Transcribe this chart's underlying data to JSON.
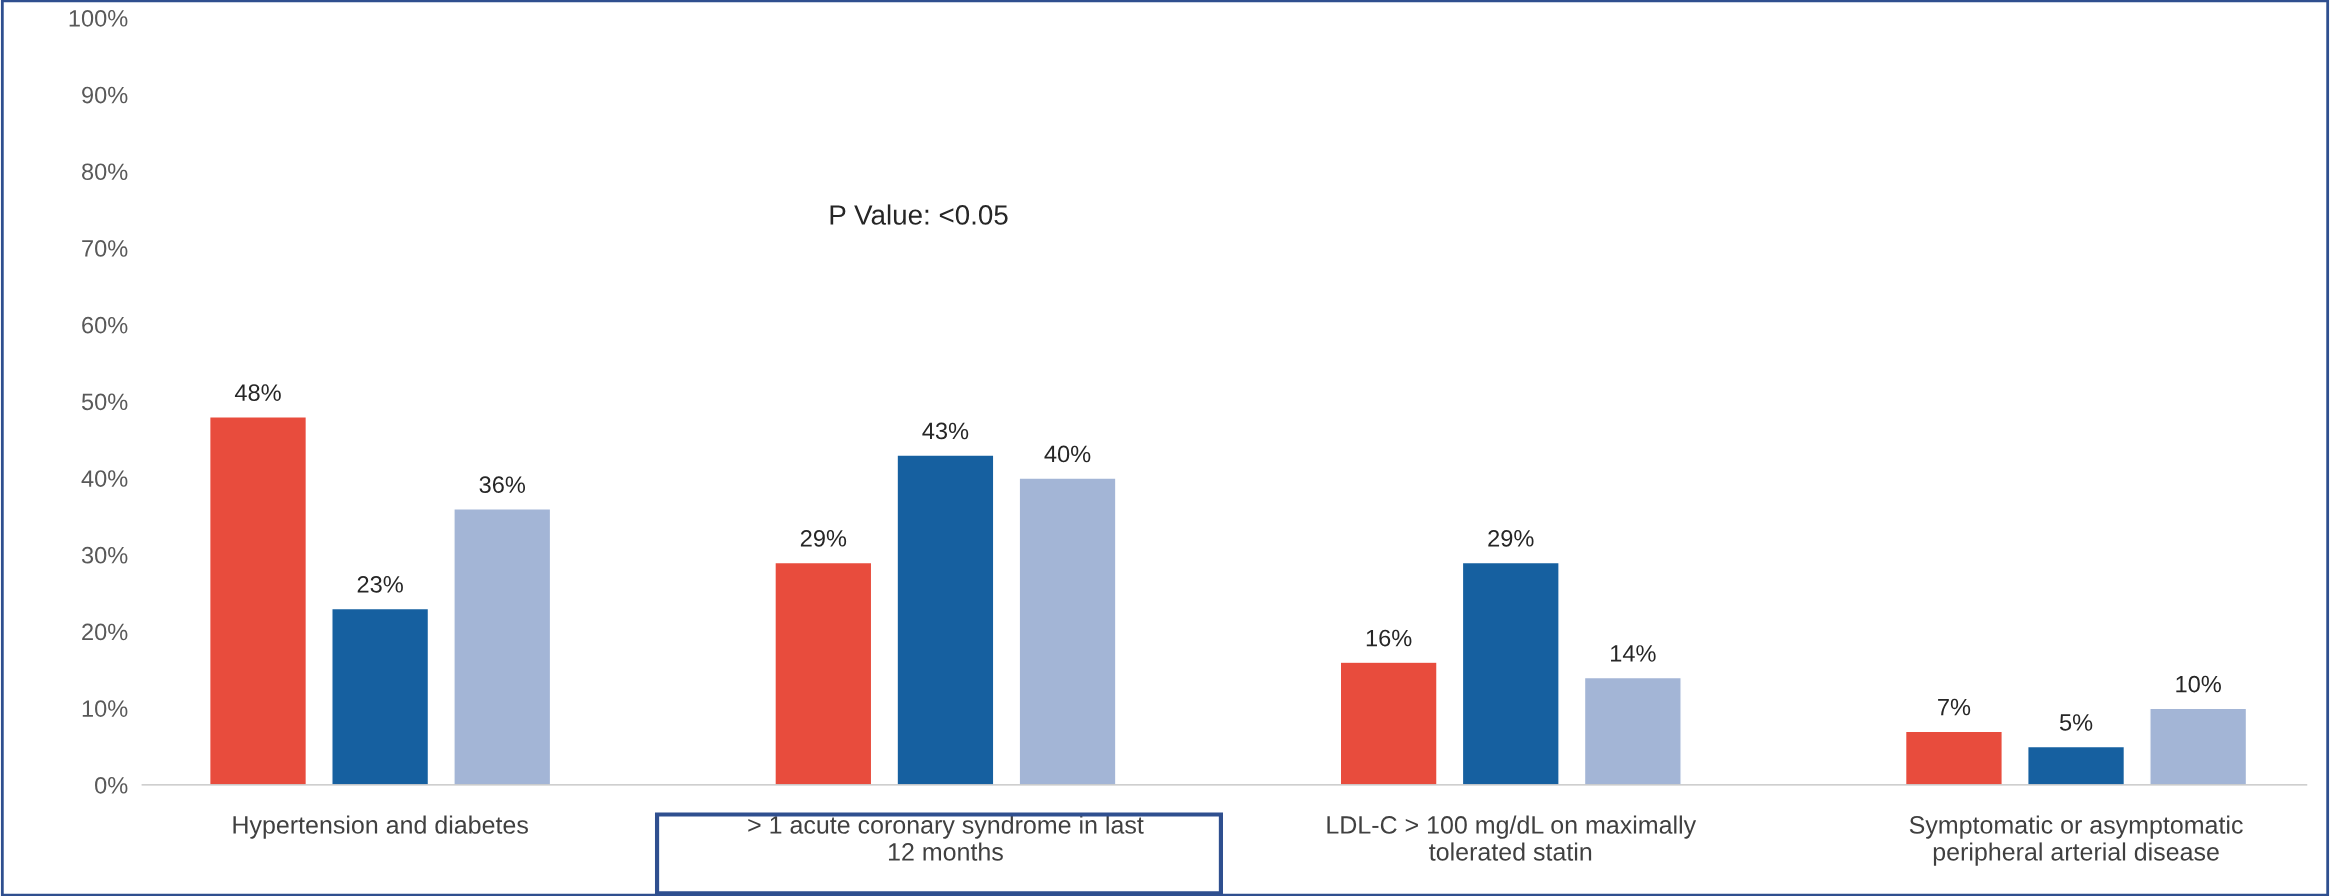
{
  "chart_data": {
    "type": "bar",
    "categories": [
      "Hypertension and diabetes",
      "> 1 acute coronary syndrome in last\n12 months",
      "LDL-C > 100 mg/dL on maximally\ntolerated statin",
      "Symptomatic or asymptomatic\nperipheral arterial disease"
    ],
    "series": [
      {
        "color": "#e84c3d",
        "values": [
          48,
          29,
          16,
          7
        ],
        "value_labels": [
          "48%",
          "29%",
          "16%",
          "7%"
        ]
      },
      {
        "color": "#1660a0",
        "values": [
          23,
          43,
          29,
          5
        ],
        "value_labels": [
          "23%",
          "43%",
          "29%",
          "5%"
        ]
      },
      {
        "color": "#a3b5d6",
        "values": [
          36,
          40,
          14,
          10
        ],
        "value_labels": [
          "36%",
          "40%",
          "14%",
          "10%"
        ]
      }
    ],
    "ylim": [
      0,
      100
    ],
    "yticks": [
      {
        "value": 0,
        "label": "0%"
      },
      {
        "value": 10,
        "label": "10%"
      },
      {
        "value": 20,
        "label": "20%"
      },
      {
        "value": 30,
        "label": "30%"
      },
      {
        "value": 40,
        "label": "40%"
      },
      {
        "value": 50,
        "label": "50%"
      },
      {
        "value": 60,
        "label": "60%"
      },
      {
        "value": 70,
        "label": "70%"
      },
      {
        "value": 80,
        "label": "80%"
      },
      {
        "value": 90,
        "label": "90%"
      },
      {
        "value": 100,
        "label": "100%"
      }
    ],
    "annotations": [
      "P Value: <0.05"
    ],
    "grid": false
  }
}
